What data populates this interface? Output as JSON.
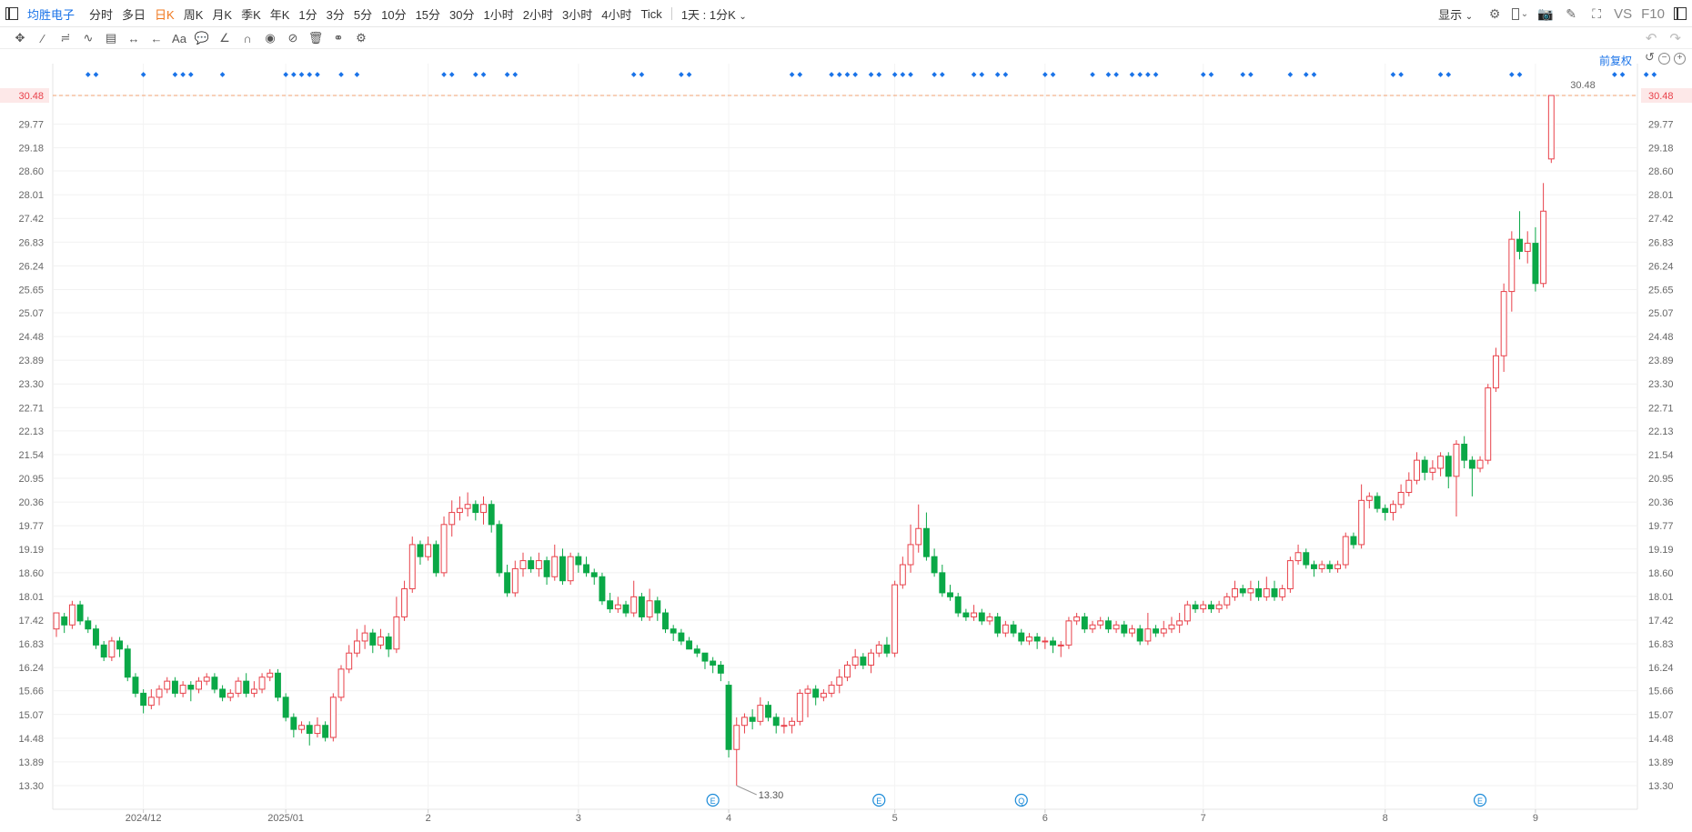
{
  "header": {
    "stock_name": "均胜电子",
    "periods": [
      "分时",
      "多日",
      "日K",
      "周K",
      "月K",
      "季K",
      "年K",
      "1分",
      "3分",
      "5分",
      "10分",
      "15分",
      "30分",
      "1小时",
      "2小时",
      "3小时",
      "4小时",
      "Tick"
    ],
    "active_period": "日K",
    "interval_select": "1天 : 1分K",
    "display_label": "显示",
    "vs_label": "VS",
    "f10_label": "F10"
  },
  "toolbar": {
    "adjust_label": "前复权",
    "font_tool_label": "Aa"
  },
  "colors": {
    "up": "#e8414a",
    "down": "#0aa847",
    "axis_text": "#666666",
    "price_line": "#f0a070",
    "marker": "#1a73e8"
  },
  "chart_data": {
    "type": "candlestick",
    "y_ticks": [
      "30.48",
      "29.77",
      "29.18",
      "28.60",
      "28.01",
      "27.42",
      "26.83",
      "26.24",
      "25.65",
      "25.07",
      "24.48",
      "23.89",
      "23.30",
      "22.71",
      "22.13",
      "21.54",
      "20.95",
      "20.36",
      "19.77",
      "19.19",
      "18.60",
      "18.01",
      "17.42",
      "16.83",
      "16.24",
      "15.66",
      "15.07",
      "14.48",
      "13.89",
      "13.30"
    ],
    "ylim": [
      12.9,
      30.9
    ],
    "x_labels": [
      {
        "label": "2024/12",
        "bar": 11
      },
      {
        "label": "2025/01",
        "bar": 29
      },
      {
        "label": "2",
        "bar": 47
      },
      {
        "label": "3",
        "bar": 66
      },
      {
        "label": "4",
        "bar": 85
      },
      {
        "label": "5",
        "bar": 106
      },
      {
        "label": "6",
        "bar": 125
      },
      {
        "label": "7",
        "bar": 145
      },
      {
        "label": "8",
        "bar": 168
      },
      {
        "label": "9",
        "bar": 187
      }
    ],
    "current_price": "30.48",
    "current_price_value": 30.48,
    "last_price_badge": "30.48",
    "min_label": "13.30",
    "min_value": 13.3,
    "min_bar": 86,
    "event_markers": [
      {
        "label": "E",
        "bar": 83
      },
      {
        "label": "E",
        "bar": 104
      },
      {
        "label": "Q",
        "bar": 122
      },
      {
        "label": "E",
        "bar": 180
      }
    ],
    "notice_bars": [
      4,
      5,
      11,
      15,
      16,
      17,
      21,
      29,
      30,
      31,
      32,
      33,
      36,
      38,
      49,
      50,
      53,
      54,
      57,
      58,
      73,
      74,
      79,
      80,
      93,
      94,
      98,
      99,
      100,
      101,
      103,
      104,
      106,
      107,
      108,
      111,
      112,
      116,
      117,
      119,
      120,
      125,
      126,
      131,
      133,
      134,
      136,
      137,
      138,
      139,
      145,
      146,
      150,
      151,
      156,
      158,
      159,
      169,
      170,
      175,
      176,
      184,
      185,
      197,
      198,
      201,
      202
    ],
    "ohlc": [
      [
        17.2,
        17.6,
        17.0,
        17.5
      ],
      [
        17.5,
        17.3,
        17.1,
        17.6
      ],
      [
        17.3,
        17.8,
        17.2,
        17.9
      ],
      [
        17.8,
        17.4,
        17.3,
        17.9
      ],
      [
        17.4,
        17.2,
        17.1,
        17.5
      ],
      [
        17.2,
        16.8,
        16.7,
        17.3
      ],
      [
        16.8,
        16.5,
        16.4,
        16.9
      ],
      [
        16.5,
        16.9,
        16.4,
        17.0
      ],
      [
        16.9,
        16.7,
        16.5,
        17.0
      ],
      [
        16.7,
        16.0,
        15.9,
        16.8
      ],
      [
        16.0,
        15.6,
        15.5,
        16.1
      ],
      [
        15.6,
        15.3,
        15.1,
        15.7
      ],
      [
        15.3,
        15.5,
        15.2,
        15.7
      ],
      [
        15.5,
        15.7,
        15.3,
        15.8
      ],
      [
        15.7,
        15.9,
        15.6,
        16.0
      ],
      [
        15.9,
        15.6,
        15.5,
        16.0
      ],
      [
        15.6,
        15.8,
        15.5,
        15.9
      ],
      [
        15.8,
        15.7,
        15.4,
        15.9
      ],
      [
        15.7,
        15.9,
        15.6,
        16.0
      ],
      [
        15.9,
        16.0,
        15.8,
        16.1
      ],
      [
        16.0,
        15.7,
        15.6,
        16.1
      ],
      [
        15.7,
        15.5,
        15.4,
        15.8
      ],
      [
        15.5,
        15.6,
        15.4,
        15.7
      ],
      [
        15.6,
        15.9,
        15.5,
        16.0
      ],
      [
        15.9,
        15.6,
        15.5,
        16.1
      ],
      [
        15.6,
        15.7,
        15.5,
        15.9
      ],
      [
        15.7,
        16.0,
        15.6,
        16.1
      ],
      [
        16.0,
        16.1,
        15.9,
        16.2
      ],
      [
        16.1,
        15.5,
        15.4,
        16.2
      ],
      [
        15.5,
        15.0,
        14.9,
        15.6
      ],
      [
        15.0,
        14.7,
        14.5,
        15.1
      ],
      [
        14.7,
        14.8,
        14.6,
        14.9
      ],
      [
        14.8,
        14.6,
        14.3,
        14.9
      ],
      [
        14.6,
        14.8,
        14.5,
        15.0
      ],
      [
        14.8,
        14.5,
        14.4,
        14.9
      ],
      [
        14.5,
        15.5,
        14.4,
        15.6
      ],
      [
        15.5,
        16.2,
        15.4,
        16.3
      ],
      [
        16.2,
        16.6,
        16.1,
        16.8
      ],
      [
        16.6,
        16.9,
        16.5,
        17.2
      ],
      [
        16.9,
        17.1,
        16.7,
        17.3
      ],
      [
        17.1,
        16.8,
        16.6,
        17.2
      ],
      [
        16.8,
        17.0,
        16.7,
        17.2
      ],
      [
        17.0,
        16.7,
        16.5,
        17.1
      ],
      [
        16.7,
        17.5,
        16.6,
        18.0
      ],
      [
        17.5,
        18.2,
        17.4,
        18.4
      ],
      [
        18.2,
        19.3,
        18.1,
        19.5
      ],
      [
        19.3,
        19.0,
        18.8,
        19.4
      ],
      [
        19.0,
        19.3,
        18.9,
        19.5
      ],
      [
        19.3,
        18.6,
        18.5,
        19.4
      ],
      [
        18.6,
        19.8,
        18.5,
        20.0
      ],
      [
        19.8,
        20.1,
        19.5,
        20.4
      ],
      [
        20.1,
        20.2,
        19.9,
        20.5
      ],
      [
        20.2,
        20.3,
        20.0,
        20.6
      ],
      [
        20.3,
        20.1,
        19.9,
        20.4
      ],
      [
        20.1,
        20.3,
        19.8,
        20.5
      ],
      [
        20.3,
        19.8,
        19.6,
        20.4
      ],
      [
        19.8,
        18.6,
        18.5,
        19.9
      ],
      [
        18.6,
        18.1,
        18.0,
        18.8
      ],
      [
        18.1,
        18.7,
        18.0,
        18.9
      ],
      [
        18.7,
        18.9,
        18.5,
        19.1
      ],
      [
        18.9,
        18.7,
        18.6,
        19.0
      ],
      [
        18.7,
        18.9,
        18.5,
        19.1
      ],
      [
        18.9,
        18.5,
        18.3,
        19.0
      ],
      [
        18.5,
        19.0,
        18.4,
        19.3
      ],
      [
        19.0,
        18.4,
        18.3,
        19.2
      ],
      [
        18.4,
        19.0,
        18.3,
        19.1
      ],
      [
        19.0,
        18.8,
        18.6,
        19.1
      ],
      [
        18.8,
        18.6,
        18.5,
        19.0
      ],
      [
        18.6,
        18.5,
        18.3,
        18.7
      ],
      [
        18.5,
        17.9,
        17.8,
        18.6
      ],
      [
        17.9,
        17.7,
        17.6,
        18.1
      ],
      [
        17.7,
        17.8,
        17.6,
        18.0
      ],
      [
        17.8,
        17.6,
        17.5,
        17.9
      ],
      [
        17.6,
        18.0,
        17.5,
        18.4
      ],
      [
        18.0,
        17.5,
        17.4,
        18.1
      ],
      [
        17.5,
        17.9,
        17.4,
        18.2
      ],
      [
        17.9,
        17.6,
        17.4,
        18.0
      ],
      [
        17.6,
        17.2,
        17.1,
        17.7
      ],
      [
        17.2,
        17.1,
        16.9,
        17.3
      ],
      [
        17.1,
        16.9,
        16.8,
        17.2
      ],
      [
        16.9,
        16.7,
        16.7,
        17.0
      ],
      [
        16.7,
        16.6,
        16.5,
        16.8
      ],
      [
        16.6,
        16.4,
        16.2,
        16.6
      ],
      [
        16.4,
        16.3,
        16.1,
        16.5
      ],
      [
        16.3,
        16.1,
        15.9,
        16.4
      ],
      [
        15.8,
        14.2,
        14.0,
        15.9
      ],
      [
        14.2,
        14.8,
        13.3,
        15.0
      ],
      [
        14.8,
        15.0,
        14.6,
        15.1
      ],
      [
        15.0,
        14.9,
        14.7,
        15.2
      ],
      [
        14.9,
        15.3,
        14.8,
        15.5
      ],
      [
        15.3,
        15.0,
        14.9,
        15.4
      ],
      [
        15.0,
        14.8,
        14.6,
        15.1
      ],
      [
        14.8,
        14.8,
        14.6,
        15.0
      ],
      [
        14.8,
        14.9,
        14.6,
        15.0
      ],
      [
        14.9,
        15.6,
        14.8,
        15.7
      ],
      [
        15.6,
        15.7,
        15.0,
        15.8
      ],
      [
        15.7,
        15.5,
        15.3,
        15.8
      ],
      [
        15.5,
        15.6,
        15.4,
        15.7
      ],
      [
        15.6,
        15.8,
        15.5,
        15.9
      ],
      [
        15.8,
        16.0,
        15.6,
        16.2
      ],
      [
        16.0,
        16.3,
        15.9,
        16.4
      ],
      [
        16.3,
        16.5,
        16.2,
        16.7
      ],
      [
        16.5,
        16.3,
        16.2,
        16.6
      ],
      [
        16.3,
        16.6,
        16.1,
        16.7
      ],
      [
        16.6,
        16.8,
        16.5,
        16.9
      ],
      [
        16.8,
        16.6,
        16.5,
        17.0
      ],
      [
        16.6,
        18.3,
        16.5,
        18.4
      ],
      [
        18.3,
        18.8,
        18.2,
        19.0
      ],
      [
        18.8,
        19.3,
        18.6,
        19.8
      ],
      [
        19.3,
        19.7,
        19.1,
        20.3
      ],
      [
        19.7,
        19.0,
        18.9,
        20.1
      ],
      [
        19.0,
        18.6,
        18.5,
        19.2
      ],
      [
        18.6,
        18.1,
        18.0,
        18.8
      ],
      [
        18.1,
        18.0,
        17.9,
        18.3
      ],
      [
        18.0,
        17.6,
        17.5,
        18.1
      ],
      [
        17.6,
        17.5,
        17.4,
        17.7
      ],
      [
        17.5,
        17.6,
        17.4,
        17.8
      ],
      [
        17.6,
        17.4,
        17.3,
        17.7
      ],
      [
        17.4,
        17.5,
        17.3,
        17.6
      ],
      [
        17.5,
        17.1,
        17.0,
        17.6
      ],
      [
        17.1,
        17.3,
        17.0,
        17.4
      ],
      [
        17.3,
        17.1,
        17.0,
        17.4
      ],
      [
        17.1,
        16.9,
        16.8,
        17.2
      ],
      [
        16.9,
        17.0,
        16.8,
        17.1
      ],
      [
        17.0,
        16.9,
        16.7,
        17.1
      ],
      [
        16.9,
        16.9,
        16.7,
        17.0
      ],
      [
        16.9,
        16.8,
        16.6,
        17.0
      ],
      [
        16.8,
        16.8,
        16.5,
        16.9
      ],
      [
        16.8,
        17.4,
        16.7,
        17.5
      ],
      [
        17.4,
        17.5,
        17.3,
        17.6
      ],
      [
        17.5,
        17.2,
        17.1,
        17.6
      ],
      [
        17.2,
        17.3,
        17.1,
        17.4
      ],
      [
        17.3,
        17.4,
        17.2,
        17.5
      ],
      [
        17.4,
        17.2,
        17.1,
        17.5
      ],
      [
        17.2,
        17.3,
        17.1,
        17.4
      ],
      [
        17.3,
        17.1,
        17.0,
        17.4
      ],
      [
        17.1,
        17.2,
        17.0,
        17.3
      ],
      [
        17.2,
        16.9,
        16.8,
        17.3
      ],
      [
        16.9,
        17.2,
        16.8,
        17.6
      ],
      [
        17.2,
        17.1,
        17.0,
        17.3
      ],
      [
        17.1,
        17.2,
        17.0,
        17.4
      ],
      [
        17.2,
        17.3,
        17.1,
        17.5
      ],
      [
        17.3,
        17.4,
        17.1,
        17.6
      ],
      [
        17.4,
        17.8,
        17.3,
        17.9
      ],
      [
        17.8,
        17.7,
        17.6,
        17.9
      ],
      [
        17.7,
        17.8,
        17.6,
        17.9
      ],
      [
        17.8,
        17.7,
        17.6,
        17.9
      ],
      [
        17.7,
        17.8,
        17.6,
        17.9
      ],
      [
        17.8,
        18.0,
        17.7,
        18.1
      ],
      [
        18.0,
        18.2,
        17.9,
        18.4
      ],
      [
        18.2,
        18.1,
        18.0,
        18.3
      ],
      [
        18.1,
        18.2,
        17.9,
        18.4
      ],
      [
        18.2,
        18.0,
        17.9,
        18.4
      ],
      [
        18.0,
        18.2,
        17.9,
        18.5
      ],
      [
        18.2,
        18.0,
        17.9,
        18.4
      ],
      [
        18.0,
        18.2,
        17.9,
        18.3
      ],
      [
        18.2,
        18.9,
        18.1,
        19.0
      ],
      [
        18.9,
        19.1,
        18.8,
        19.3
      ],
      [
        19.1,
        18.8,
        18.7,
        19.2
      ],
      [
        18.8,
        18.7,
        18.5,
        18.9
      ],
      [
        18.7,
        18.8,
        18.6,
        18.9
      ],
      [
        18.8,
        18.7,
        18.6,
        18.9
      ],
      [
        18.7,
        18.8,
        18.6,
        18.9
      ],
      [
        18.8,
        19.5,
        18.7,
        19.6
      ],
      [
        19.5,
        19.3,
        19.2,
        19.6
      ],
      [
        19.3,
        20.4,
        19.2,
        20.8
      ],
      [
        20.4,
        20.5,
        20.2,
        20.6
      ],
      [
        20.5,
        20.2,
        20.1,
        20.6
      ],
      [
        20.2,
        20.1,
        19.9,
        20.3
      ],
      [
        20.1,
        20.3,
        19.9,
        20.4
      ],
      [
        20.3,
        20.6,
        20.2,
        20.8
      ],
      [
        20.6,
        20.9,
        20.5,
        21.1
      ],
      [
        20.9,
        21.4,
        20.8,
        21.6
      ],
      [
        21.4,
        21.1,
        20.9,
        21.5
      ],
      [
        21.1,
        21.2,
        20.9,
        21.4
      ],
      [
        21.2,
        21.5,
        21.0,
        21.6
      ],
      [
        21.5,
        21.0,
        20.7,
        21.6
      ],
      [
        21.0,
        21.8,
        20.0,
        21.9
      ],
      [
        21.8,
        21.4,
        21.2,
        22.0
      ],
      [
        21.4,
        21.2,
        20.5,
        21.5
      ],
      [
        21.2,
        21.4,
        21.1,
        21.5
      ],
      [
        21.4,
        23.2,
        21.3,
        23.3
      ],
      [
        23.2,
        24.0,
        23.1,
        24.2
      ],
      [
        24.0,
        25.6,
        23.6,
        25.8
      ],
      [
        25.6,
        26.9,
        25.1,
        27.1
      ],
      [
        26.9,
        26.6,
        26.4,
        27.6
      ],
      [
        26.6,
        26.8,
        26.3,
        27.1
      ],
      [
        26.8,
        25.8,
        25.6,
        27.2
      ],
      [
        25.8,
        27.6,
        25.7,
        28.3
      ],
      [
        28.9,
        30.48,
        28.8,
        30.48
      ]
    ]
  }
}
